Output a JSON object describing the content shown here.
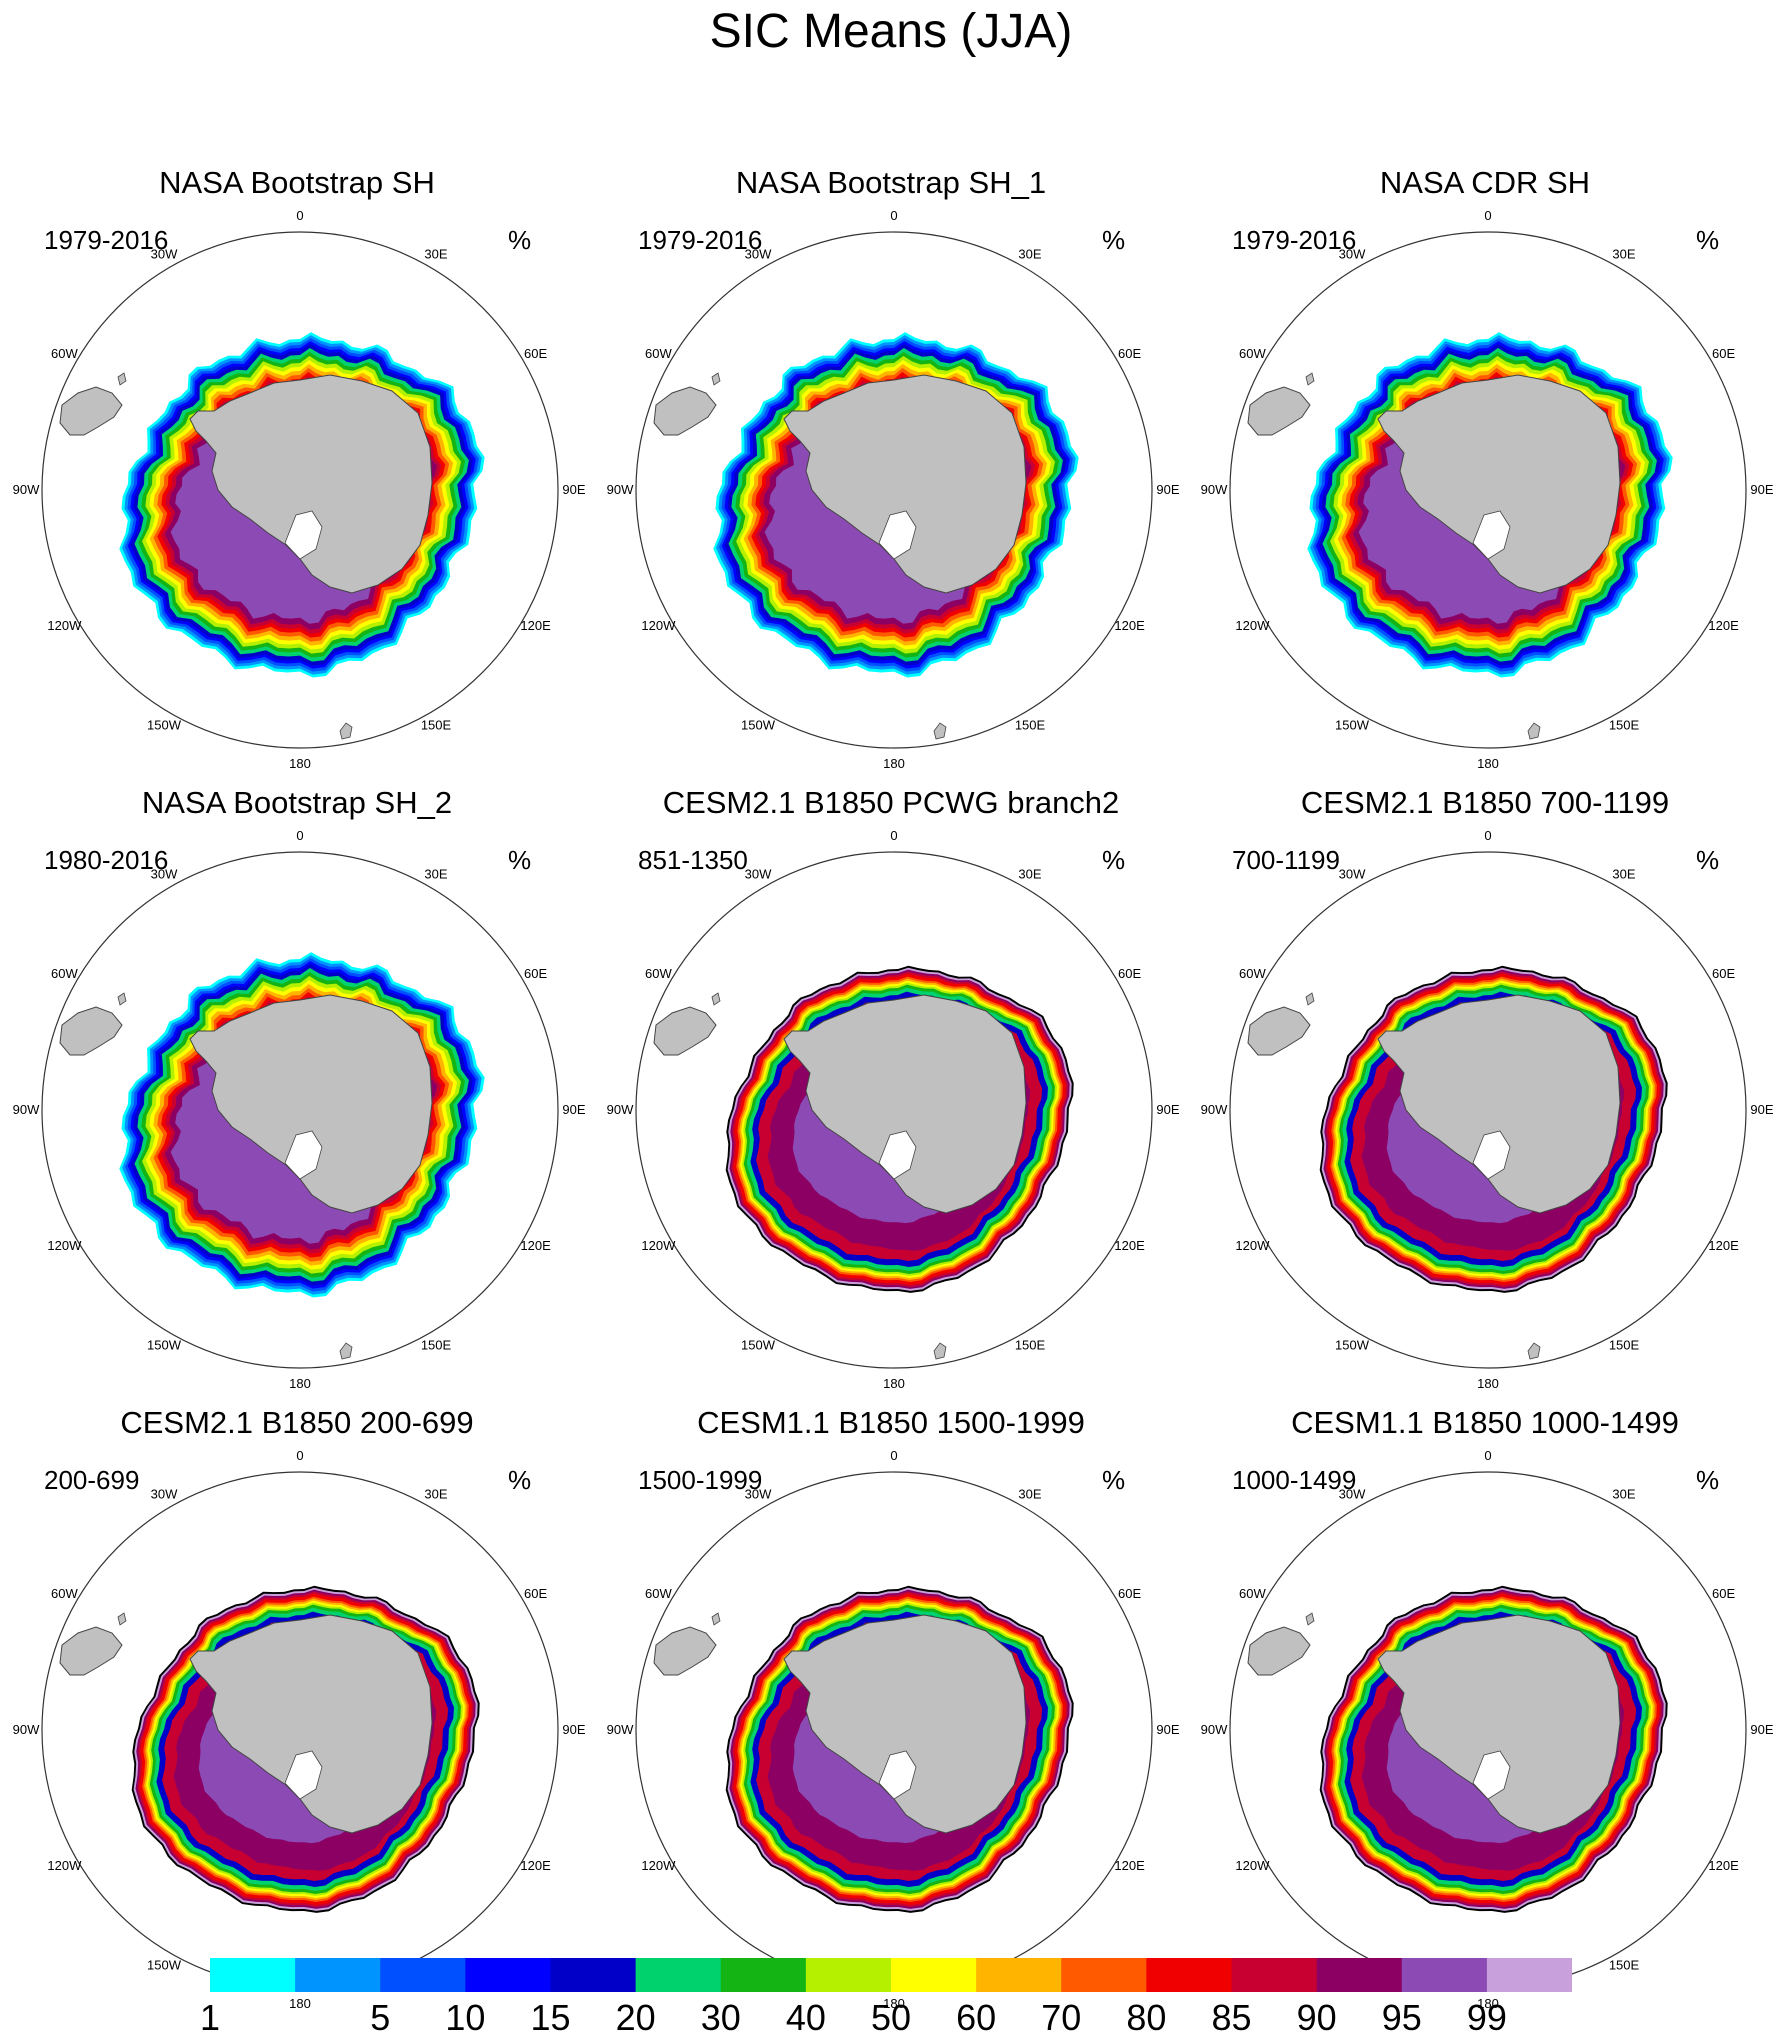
{
  "title": "SIC Means (JJA)",
  "units": "%",
  "longitude_labels": [
    "0",
    "30E",
    "60E",
    "90E",
    "120E",
    "150E",
    "180",
    "150W",
    "120W",
    "90W",
    "60W",
    "30W"
  ],
  "panels": [
    {
      "title": "NASA Bootstrap SH",
      "period": "1979-2016",
      "type": "obs"
    },
    {
      "title": "NASA Bootstrap SH_1",
      "period": "1979-2016",
      "type": "obs"
    },
    {
      "title": "NASA CDR SH",
      "period": "1979-2016",
      "type": "obs"
    },
    {
      "title": "NASA Bootstrap SH_2",
      "period": "1980-2016",
      "type": "obs"
    },
    {
      "title": "CESM2.1 B1850 PCWG branch2",
      "period": "851-1350",
      "type": "model"
    },
    {
      "title": "CESM2.1 B1850 700-1199",
      "period": "700-1199",
      "type": "model"
    },
    {
      "title": "CESM2.1 B1850 200-699",
      "period": "200-699",
      "type": "model"
    },
    {
      "title": "CESM1.1 B1850 1500-1999",
      "period": "1500-1999",
      "type": "model"
    },
    {
      "title": "CESM1.1 B1850 1000-1499",
      "period": "1000-1499",
      "type": "model"
    }
  ],
  "colorbar": {
    "levels": [
      "1",
      "5",
      "10",
      "15",
      "20",
      "30",
      "40",
      "50",
      "60",
      "70",
      "80",
      "85",
      "90",
      "95",
      "99"
    ],
    "colors": [
      "#00ffff",
      "#0094ff",
      "#0050ff",
      "#0000ff",
      "#0000c8",
      "#00d26e",
      "#14b414",
      "#b4f000",
      "#ffff00",
      "#ffb400",
      "#ff5a00",
      "#f00000",
      "#c80032",
      "#8c0064",
      "#8c4bb4",
      "#c8a0dc"
    ]
  },
  "land_color": "#c0c0c0"
}
